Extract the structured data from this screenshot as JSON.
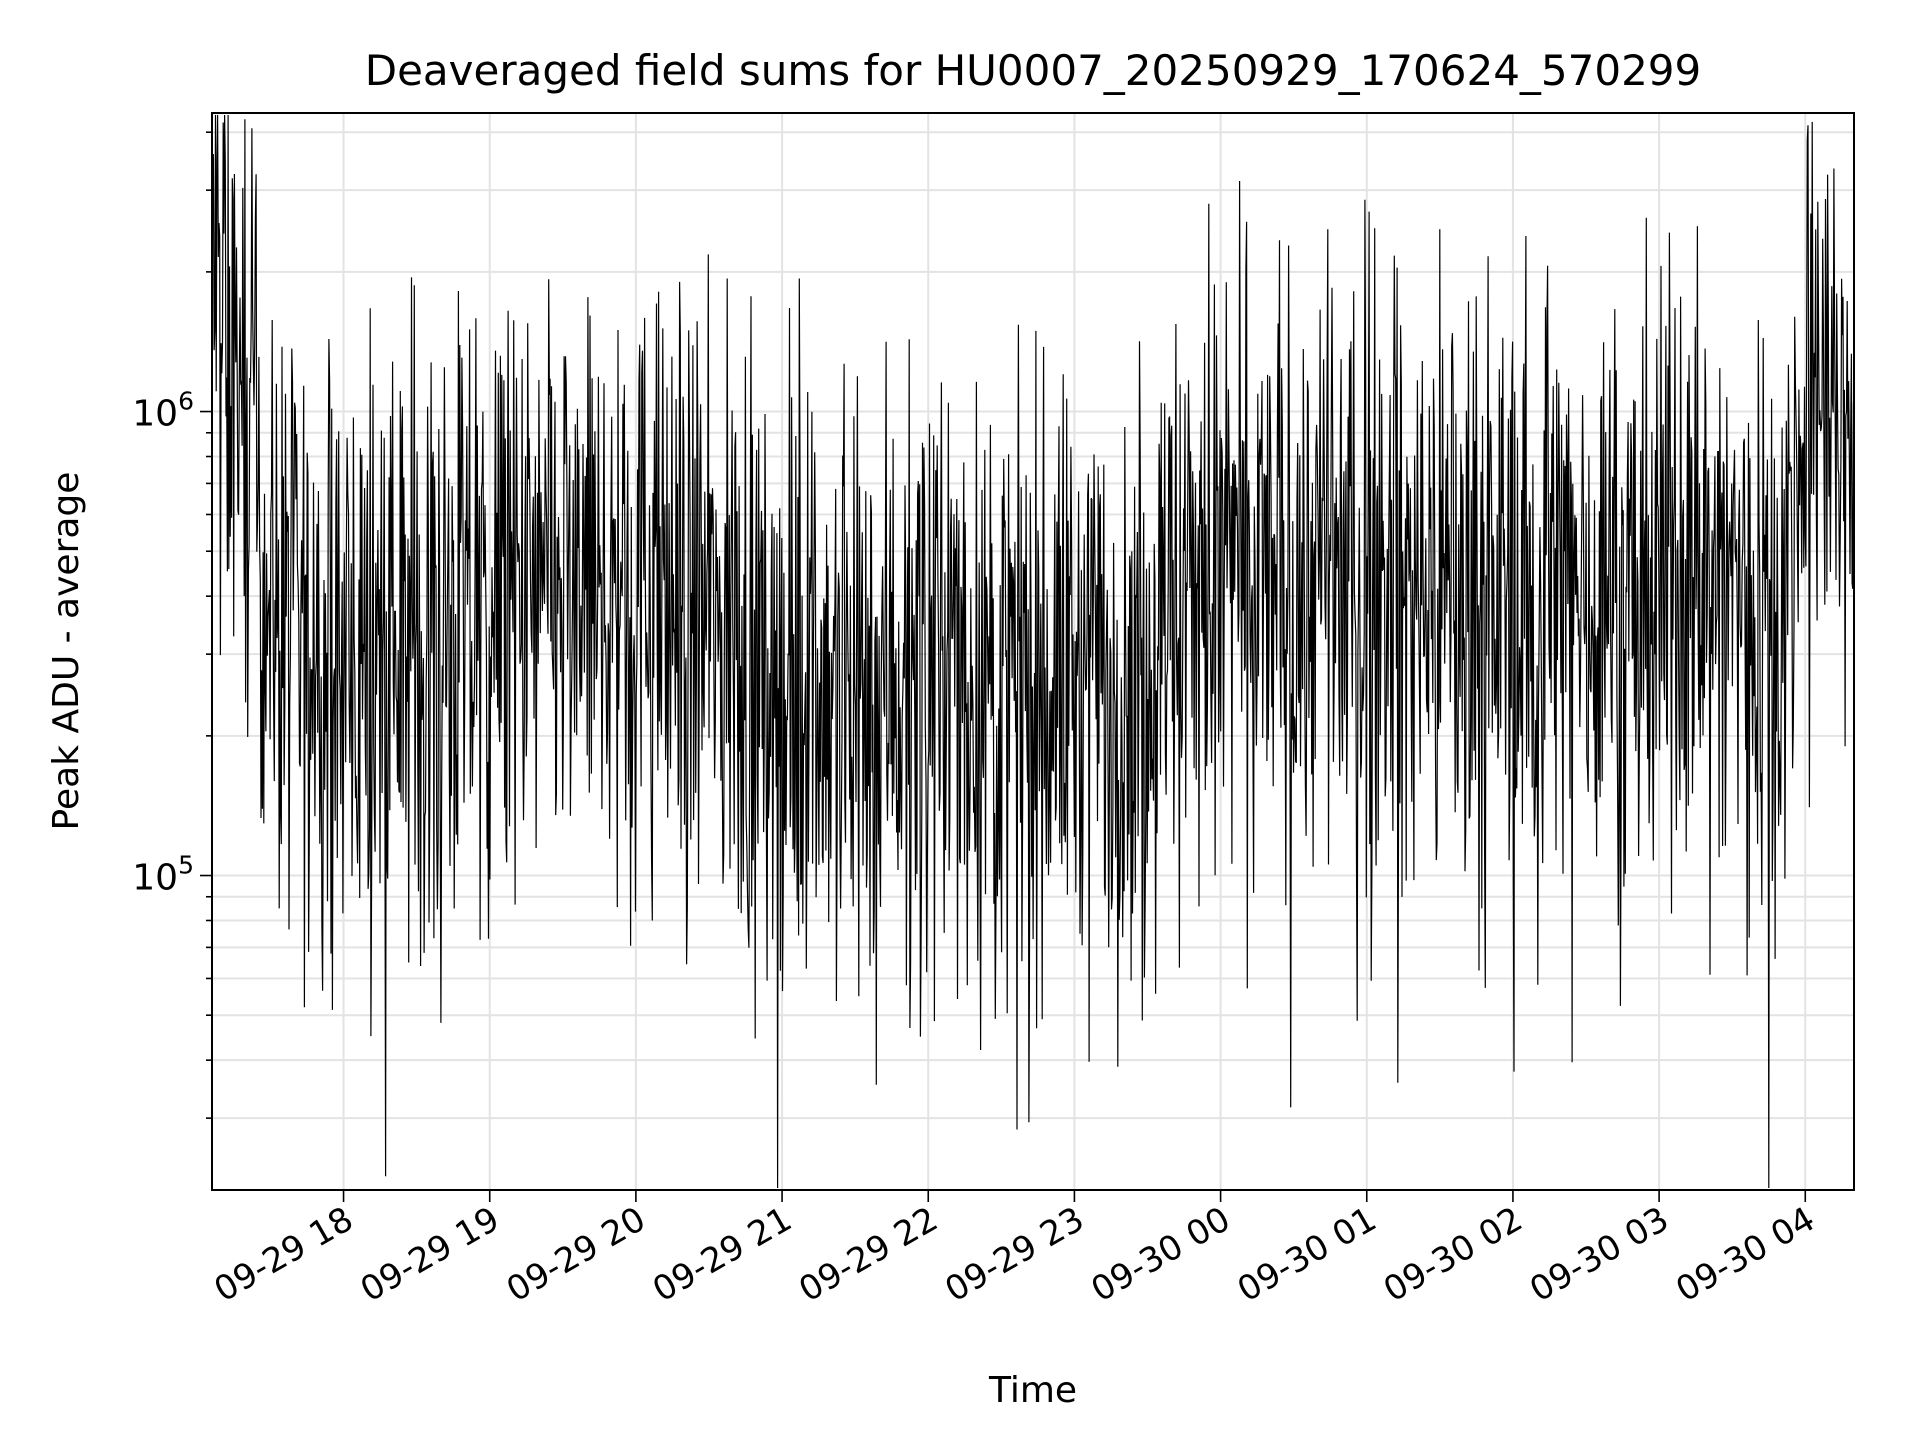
{
  "chart_data": {
    "type": "line",
    "title": "Deaveraged field sums for HU0007_20250929_170624_570299",
    "xlabel": "Time",
    "ylabel": "Peak ADU - average",
    "yscale": "log",
    "ylim": [
      21000,
      4400000
    ],
    "xlim": [
      "2025-09-29 17:06",
      "2025-09-30 04:20"
    ],
    "grid": true,
    "line_color": "#000000",
    "y_ticks": [
      {
        "value": 100000,
        "base": "10",
        "exp": "5"
      },
      {
        "value": 1000000,
        "base": "10",
        "exp": "6"
      }
    ],
    "x_ticks": [
      {
        "value": "2025-09-29 18:00",
        "label": "09-29 18"
      },
      {
        "value": "2025-09-29 19:00",
        "label": "09-29 19"
      },
      {
        "value": "2025-09-29 20:00",
        "label": "09-29 20"
      },
      {
        "value": "2025-09-29 21:00",
        "label": "09-29 21"
      },
      {
        "value": "2025-09-29 22:00",
        "label": "09-29 22"
      },
      {
        "value": "2025-09-29 23:00",
        "label": "09-29 23"
      },
      {
        "value": "2025-09-30 00:00",
        "label": "09-30 00"
      },
      {
        "value": "2025-09-30 01:00",
        "label": "09-30 01"
      },
      {
        "value": "2025-09-30 02:00",
        "label": "09-30 02"
      },
      {
        "value": "2025-09-30 03:00",
        "label": "09-30 03"
      },
      {
        "value": "2025-09-30 04:00",
        "label": "09-30 04"
      }
    ],
    "series": [
      {
        "points": [
          [
            "2025-09-29 17:06",
            2200000
          ],
          [
            "2025-09-29 17:08",
            1800000
          ],
          [
            "2025-09-29 17:10",
            1500000
          ],
          [
            "2025-09-29 17:13",
            1300000
          ],
          [
            "2025-09-29 17:16",
            1150000
          ],
          [
            "2025-09-29 17:19",
            1000000
          ],
          [
            "2025-09-29 17:22",
            850000
          ],
          [
            "2025-09-29 17:25",
            650000
          ],
          [
            "2025-09-29 17:28",
            480000
          ],
          [
            "2025-09-29 17:32",
            360000
          ],
          [
            "2025-09-29 17:40",
            310000
          ],
          [
            "2025-09-29 17:50",
            300000
          ],
          [
            "2025-09-29 18:00",
            290000
          ],
          [
            "2025-09-29 18:15",
            310000
          ],
          [
            "2025-09-29 18:30",
            320000
          ],
          [
            "2025-09-29 18:45",
            330000
          ],
          [
            "2025-09-29 19:00",
            360000
          ],
          [
            "2025-09-29 19:15",
            380000
          ],
          [
            "2025-09-29 19:30",
            400000
          ],
          [
            "2025-09-29 19:45",
            420000
          ],
          [
            "2025-09-29 20:00",
            420000
          ],
          [
            "2025-09-29 20:15",
            400000
          ],
          [
            "2025-09-29 20:30",
            350000
          ],
          [
            "2025-09-29 20:45",
            300000
          ],
          [
            "2025-09-29 21:00",
            270000
          ],
          [
            "2025-09-29 21:15",
            260000
          ],
          [
            "2025-09-29 21:30",
            260000
          ],
          [
            "2025-09-29 21:45",
            280000
          ],
          [
            "2025-09-29 22:00",
            290000
          ],
          [
            "2025-09-29 22:15",
            270000
          ],
          [
            "2025-09-29 22:30",
            250000
          ],
          [
            "2025-09-29 22:45",
            260000
          ],
          [
            "2025-09-29 23:00",
            270000
          ],
          [
            "2025-09-29 23:15",
            260000
          ],
          [
            "2025-09-29 23:30",
            300000
          ],
          [
            "2025-09-29 23:45",
            430000
          ],
          [
            "2025-09-30 00:00",
            450000
          ],
          [
            "2025-09-30 00:15",
            430000
          ],
          [
            "2025-09-30 00:30",
            440000
          ],
          [
            "2025-09-30 00:45",
            450000
          ],
          [
            "2025-09-30 01:00",
            440000
          ],
          [
            "2025-09-30 01:15",
            430000
          ],
          [
            "2025-09-30 01:30",
            420000
          ],
          [
            "2025-09-30 01:45",
            420000
          ],
          [
            "2025-09-30 02:00",
            410000
          ],
          [
            "2025-09-30 02:15",
            420000
          ],
          [
            "2025-09-30 02:30",
            420000
          ],
          [
            "2025-09-30 02:45",
            410000
          ],
          [
            "2025-09-30 03:00",
            430000
          ],
          [
            "2025-09-30 03:15",
            440000
          ],
          [
            "2025-09-30 03:30",
            420000
          ],
          [
            "2025-09-30 03:45",
            400000
          ],
          [
            "2025-09-30 03:52",
            450000
          ],
          [
            "2025-09-30 04:00",
            850000
          ],
          [
            "2025-09-30 04:05",
            1300000
          ],
          [
            "2025-09-30 04:10",
            1000000
          ],
          [
            "2025-09-30 04:15",
            700000
          ],
          [
            "2025-09-30 04:20",
            1100000
          ]
        ],
        "noise_log10_spread": 0.32
      }
    ]
  }
}
